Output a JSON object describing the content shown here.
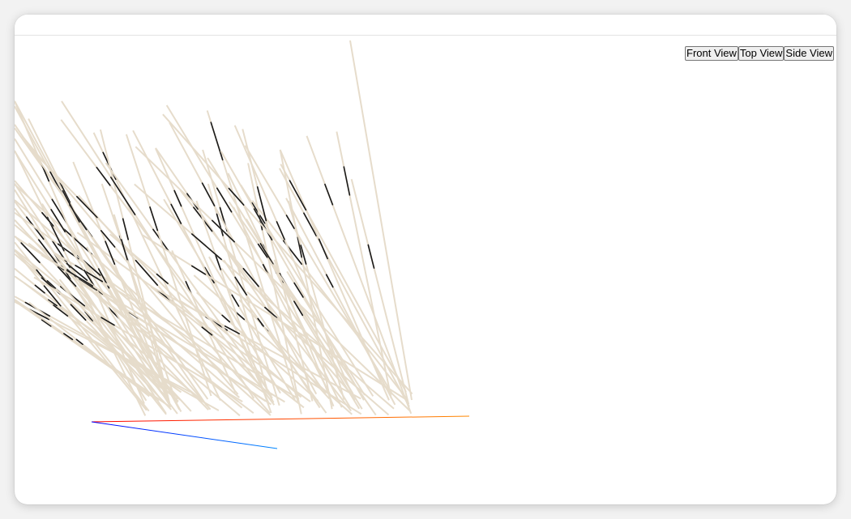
{
  "viewer": {
    "buttons": [
      {
        "label": "Front View"
      },
      {
        "label": "Top View"
      },
      {
        "label": "Side View"
      }
    ]
  },
  "scene": {
    "background": "#ffffff",
    "axis_colors": {
      "x_start": "#ff0000",
      "x_end": "#ff8800",
      "y_start": "#00ff00",
      "y_end": "#88ff00",
      "z_start": "#0000ff",
      "z_end": "#0088ff"
    },
    "strand_color": "#e6dccb",
    "strand_dark_color": "#1a1a1a",
    "strand_count": 110
  }
}
